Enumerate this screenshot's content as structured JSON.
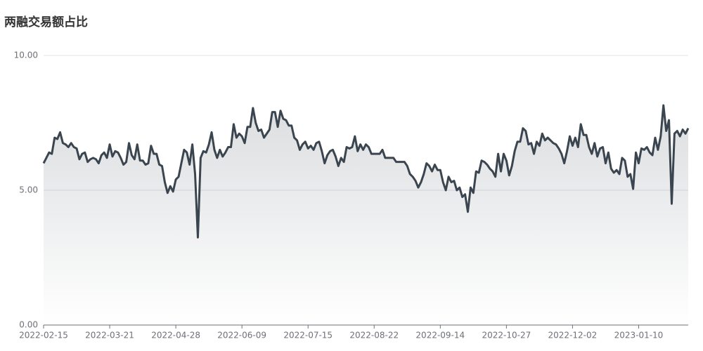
{
  "chart_data": {
    "type": "line",
    "title": "两融交易额占比",
    "categories": [
      "2022-02-15",
      null,
      null,
      null,
      null,
      null,
      null,
      null,
      null,
      null,
      null,
      null,
      null,
      null,
      null,
      null,
      null,
      null,
      null,
      null,
      null,
      null,
      null,
      null,
      "2022-03-21",
      null,
      null,
      null,
      null,
      null,
      null,
      null,
      null,
      null,
      null,
      null,
      null,
      null,
      null,
      null,
      null,
      null,
      null,
      null,
      null,
      null,
      null,
      null,
      "2022-04-28",
      null,
      null,
      null,
      null,
      null,
      null,
      null,
      null,
      null,
      null,
      null,
      null,
      null,
      null,
      null,
      null,
      null,
      null,
      null,
      null,
      null,
      null,
      null,
      "2022-06-09",
      null,
      null,
      null,
      null,
      null,
      null,
      null,
      null,
      null,
      null,
      null,
      null,
      null,
      null,
      null,
      null,
      null,
      null,
      null,
      null,
      null,
      null,
      null,
      "2022-07-15",
      null,
      null,
      null,
      null,
      null,
      null,
      null,
      null,
      null,
      null,
      null,
      null,
      null,
      null,
      null,
      null,
      null,
      null,
      null,
      null,
      null,
      null,
      null,
      "2022-08-22",
      null,
      null,
      null,
      null,
      null,
      null,
      null,
      null,
      null,
      null,
      null,
      null,
      null,
      null,
      null,
      null,
      null,
      null,
      null,
      null,
      null,
      null,
      null,
      "2022-09-14",
      null,
      null,
      null,
      null,
      null,
      null,
      null,
      null,
      null,
      null,
      null,
      null,
      null,
      null,
      null,
      null,
      null,
      null,
      null,
      null,
      null,
      null,
      null,
      "2022-10-27",
      null,
      null,
      null,
      null,
      null,
      null,
      null,
      null,
      null,
      null,
      null,
      null,
      null,
      null,
      null,
      null,
      null,
      null,
      null,
      null,
      null,
      null,
      null,
      "2022-12-02",
      null,
      null,
      null,
      null,
      null,
      null,
      null,
      null,
      null,
      null,
      null,
      null,
      null,
      null,
      null,
      null,
      null,
      null,
      null,
      null,
      null,
      null,
      null,
      "2023-01-10",
      null,
      null,
      null,
      null,
      null,
      null,
      null,
      null,
      null,
      null,
      null,
      null,
      null,
      null,
      null,
      null,
      null,
      null
    ],
    "values": [
      6.0,
      6.2,
      6.4,
      6.35,
      6.95,
      6.9,
      7.15,
      6.75,
      6.7,
      6.6,
      6.75,
      6.6,
      6.55,
      6.15,
      6.35,
      6.4,
      6.05,
      6.15,
      6.2,
      6.15,
      6.0,
      6.3,
      6.4,
      6.2,
      6.7,
      6.25,
      6.45,
      6.4,
      6.2,
      5.95,
      6.05,
      6.75,
      6.3,
      6.15,
      6.7,
      6.1,
      6.1,
      5.95,
      6.0,
      6.65,
      6.35,
      6.35,
      5.95,
      5.9,
      5.3,
      4.9,
      5.15,
      4.95,
      5.4,
      5.5,
      6.0,
      6.5,
      6.4,
      5.95,
      6.7,
      5.6,
      3.25,
      6.2,
      6.45,
      6.4,
      6.7,
      7.15,
      6.5,
      6.2,
      6.5,
      6.25,
      6.4,
      6.6,
      6.6,
      7.45,
      6.95,
      7.1,
      7.0,
      6.75,
      7.35,
      7.35,
      8.05,
      7.5,
      7.2,
      7.25,
      6.95,
      7.1,
      7.25,
      7.9,
      7.9,
      7.35,
      7.95,
      7.65,
      7.6,
      7.4,
      7.4,
      6.95,
      6.85,
      6.5,
      6.7,
      6.8,
      6.55,
      6.65,
      6.5,
      6.75,
      6.8,
      6.45,
      6.0,
      6.3,
      6.45,
      6.5,
      6.25,
      5.9,
      6.2,
      6.05,
      6.6,
      6.55,
      6.6,
      7.0,
      6.45,
      6.7,
      6.5,
      6.7,
      6.6,
      6.35,
      6.35,
      6.35,
      6.35,
      6.5,
      6.2,
      6.2,
      6.2,
      6.2,
      6.05,
      6.05,
      6.05,
      6.05,
      5.9,
      5.6,
      5.5,
      5.35,
      5.1,
      5.3,
      5.6,
      6.0,
      5.9,
      5.7,
      5.95,
      5.75,
      5.75,
      5.3,
      5.0,
      5.5,
      5.3,
      5.35,
      5.0,
      5.1,
      4.75,
      4.85,
      4.2,
      5.1,
      4.9,
      5.7,
      5.65,
      6.1,
      6.05,
      5.95,
      5.8,
      5.7,
      5.5,
      6.35,
      5.7,
      6.35,
      6.1,
      5.55,
      5.9,
      6.45,
      6.8,
      6.8,
      7.3,
      7.2,
      6.7,
      6.75,
      6.35,
      6.8,
      6.65,
      7.1,
      6.85,
      6.95,
      6.85,
      6.75,
      6.7,
      6.55,
      6.35,
      6.0,
      6.45,
      7.0,
      6.65,
      6.95,
      6.6,
      7.45,
      7.05,
      7.05,
      6.6,
      6.35,
      6.75,
      6.25,
      6.55,
      6.6,
      6.0,
      6.4,
      5.8,
      5.65,
      5.75,
      5.6,
      6.2,
      6.1,
      5.5,
      5.6,
      5.05,
      6.4,
      6.0,
      6.55,
      6.5,
      6.6,
      6.4,
      6.3,
      6.95,
      6.5,
      7.0,
      8.15,
      7.2,
      7.6,
      4.5,
      7.1,
      7.2,
      7.0,
      7.25,
      7.1,
      7.3
    ],
    "color": "#3b4550",
    "ylim": [
      0,
      10
    ],
    "yticks": [
      {
        "value": 0,
        "label": "0.00"
      },
      {
        "value": 5,
        "label": "5.00"
      },
      {
        "value": 10,
        "label": "10.00"
      }
    ],
    "grid": true
  }
}
